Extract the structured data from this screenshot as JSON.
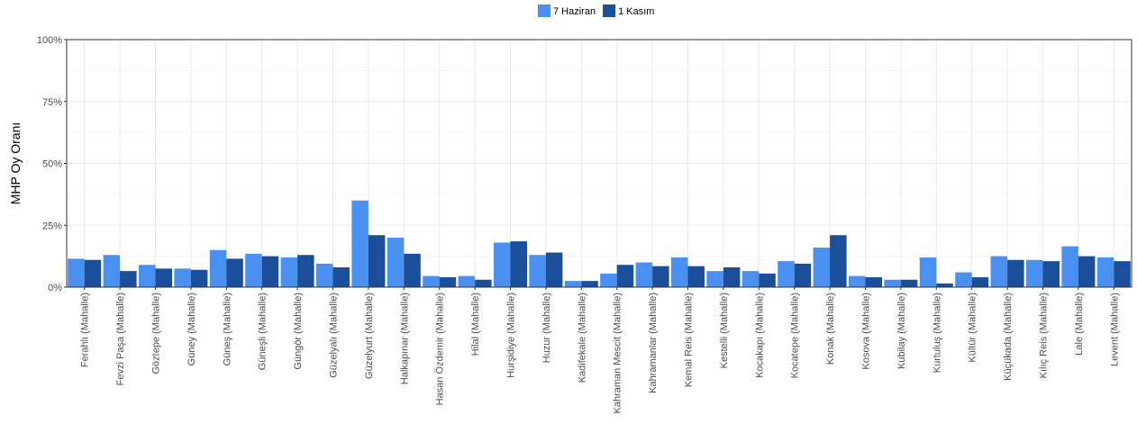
{
  "colors": {
    "series1": "#4a90f0",
    "series2": "#1c4f9a",
    "grid": "#ebebeb",
    "axis": "#333333"
  },
  "chart_data": {
    "type": "bar",
    "ylabel": "MHP Oy Oranı",
    "xlabel": "",
    "ylim": [
      0,
      100
    ],
    "y_ticks": [
      "0%",
      "25%",
      "50%",
      "75%",
      "100%"
    ],
    "legend_position": "top",
    "grid": true,
    "categories": [
      "Ferahlı (Mahalle)",
      "Fevzi Paşa (Mahalle)",
      "Göztepe (Mahalle)",
      "Güney (Mahalle)",
      "Güneş (Mahalle)",
      "Güneşli (Mahalle)",
      "Güngör (Mahalle)",
      "Güzelyalı (Mahalle)",
      "Güzelyurt (Mahalle)",
      "Halkapınar (Mahalle)",
      "Hasan Özdemir (Mahalle)",
      "Hilal (Mahalle)",
      "Hurşidiye (Mahalle)",
      "Huzur (Mahalle)",
      "Kadifekale (Mahalle)",
      "Kahraman Mescit (Mahalle)",
      "Kahramanlar (Mahalle)",
      "Kemal Reis (Mahalle)",
      "Kestelli (Mahalle)",
      "Kocakapı (Mahalle)",
      "Kocatepe (Mahalle)",
      "Konak (Mahalle)",
      "Kosova (Mahalle)",
      "Kubilay (Mahalle)",
      "Kurtuluş (Mahalle)",
      "Kültür (Mahalle)",
      "Küçükada (Mahalle)",
      "Kılıç Reis (Mahalle)",
      "Lale (Mahalle)",
      "Levent (Mahalle)"
    ],
    "series": [
      {
        "name": "7 Haziran",
        "values": [
          11.5,
          13,
          9,
          7.5,
          15,
          13.5,
          12,
          9.5,
          35,
          20,
          4.5,
          4.5,
          18,
          13,
          2.5,
          5.5,
          10,
          12,
          6.5,
          6.5,
          10.5,
          16,
          4.5,
          3,
          12,
          6,
          12.5,
          11,
          16.5,
          12
        ]
      },
      {
        "name": "1 Kasım",
        "values": [
          11,
          6.5,
          7.5,
          7,
          11.5,
          12.5,
          13,
          8,
          21,
          13.5,
          4,
          3,
          18.5,
          14,
          2.5,
          9,
          8.5,
          8.5,
          8,
          5.5,
          9.5,
          21,
          4,
          3,
          1.5,
          4,
          11,
          10.5,
          12.5,
          10.5
        ]
      }
    ]
  }
}
